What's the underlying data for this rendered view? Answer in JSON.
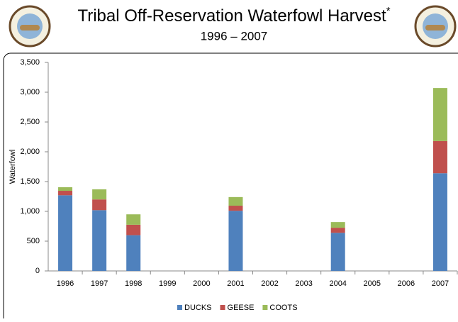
{
  "chart_data": {
    "type": "stacked_bar",
    "title": "Tribal Off-Reservation Waterfowl Harvest",
    "title_note": "*",
    "subtitle": "1996 – 2007",
    "y_label": "Waterfowl",
    "categories": [
      "1996",
      "1997",
      "1998",
      "1999",
      "2000",
      "2001",
      "2002",
      "2003",
      "2004",
      "2005",
      "2006",
      "2007"
    ],
    "series": [
      {
        "name": "DUCKS",
        "color": "#4f81bd",
        "values": [
          1270,
          1020,
          600,
          0,
          0,
          1010,
          0,
          0,
          640,
          0,
          0,
          1640
        ]
      },
      {
        "name": "GEESE",
        "color": "#c0504d",
        "values": [
          75,
          180,
          175,
          0,
          0,
          85,
          0,
          0,
          85,
          0,
          0,
          540
        ]
      },
      {
        "name": "COOTS",
        "color": "#9bbb59",
        "values": [
          60,
          170,
          175,
          0,
          0,
          145,
          0,
          0,
          95,
          0,
          0,
          890
        ]
      }
    ],
    "ylim": [
      0,
      3500
    ],
    "yticks": [
      0,
      500,
      {
        "value": 1000,
        "label": "1,000"
      },
      {
        "value": 1500,
        "label": "1,500"
      },
      {
        "value": 2000,
        "label": "2,000"
      },
      {
        "value": 2500,
        "label": "2,500"
      },
      {
        "value": 3000,
        "label": "3,000"
      },
      {
        "value": 3500,
        "label": "3,500"
      }
    ],
    "legend": "bottom"
  }
}
